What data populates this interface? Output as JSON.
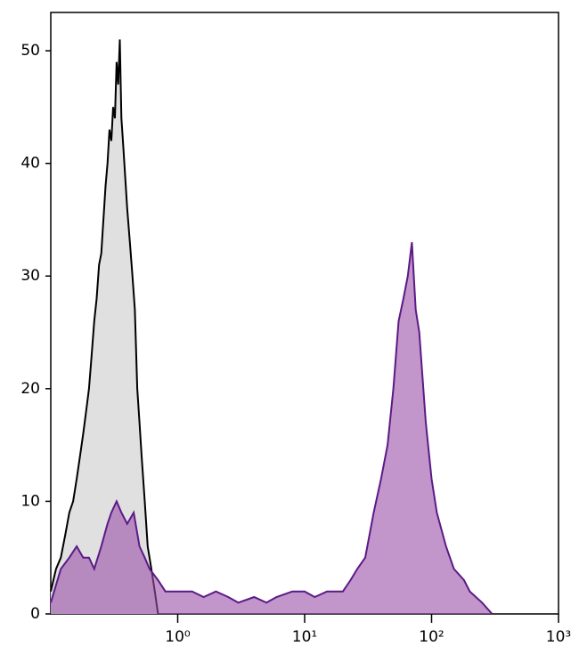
{
  "chart_data": {
    "type": "area",
    "log_x": true,
    "xlim": [
      0.1,
      1000
    ],
    "ylim": [
      0,
      53.4
    ],
    "xticks": [
      {
        "value": 1,
        "label": "10⁰"
      },
      {
        "value": 10,
        "label": "10¹"
      },
      {
        "value": 100,
        "label": "10²"
      },
      {
        "value": 1000,
        "label": "10³"
      }
    ],
    "yticks": [
      0,
      10,
      20,
      30,
      40,
      50
    ],
    "series": [
      {
        "color": "#000000",
        "fill": "#e0e0e0",
        "x": [
          0.1,
          0.11,
          0.12,
          0.13,
          0.14,
          0.15,
          0.16,
          0.17,
          0.18,
          0.19,
          0.2,
          0.21,
          0.22,
          0.23,
          0.24,
          0.25,
          0.26,
          0.27,
          0.28,
          0.29,
          0.3,
          0.31,
          0.32,
          0.33,
          0.34,
          0.35,
          0.36,
          0.37,
          0.38,
          0.39,
          0.4,
          0.42,
          0.44,
          0.46,
          0.48,
          0.5,
          0.52,
          0.55,
          0.58,
          0.62,
          0.66,
          0.7
        ],
        "values": [
          2,
          4,
          5,
          7,
          9,
          10,
          12,
          14,
          16,
          18,
          20,
          23,
          26,
          28,
          31,
          32,
          35,
          38,
          40,
          43,
          42,
          45,
          44,
          49,
          47,
          51,
          44,
          42,
          40,
          38,
          36,
          33,
          30,
          27,
          20,
          17,
          14,
          10,
          6,
          4,
          2,
          0
        ]
      },
      {
        "color": "#5b1a86",
        "fill": "#9a4fa8",
        "x": [
          0.1,
          0.12,
          0.14,
          0.16,
          0.18,
          0.2,
          0.22,
          0.25,
          0.28,
          0.3,
          0.33,
          0.36,
          0.4,
          0.45,
          0.5,
          0.55,
          0.6,
          0.7,
          0.8,
          1,
          1.3,
          1.6,
          2,
          2.5,
          3,
          4,
          5,
          6,
          8,
          10,
          12,
          15,
          18,
          20,
          23,
          26,
          30,
          35,
          40,
          45,
          50,
          55,
          60,
          65,
          70,
          75,
          80,
          90,
          100,
          110,
          130,
          150,
          180,
          200,
          250,
          300
        ],
        "values": [
          1,
          4,
          5,
          6,
          5,
          5,
          4,
          6,
          8,
          9,
          10,
          9,
          8,
          9,
          6,
          5,
          4,
          3,
          2,
          2,
          2,
          1.5,
          2,
          1.5,
          1,
          1.5,
          1,
          1.5,
          2,
          2,
          1.5,
          2,
          2,
          2,
          3,
          4,
          5,
          9,
          12,
          15,
          20,
          26,
          28,
          30,
          33,
          27,
          25,
          17,
          12,
          9,
          6,
          4,
          3,
          2,
          1,
          0
        ]
      }
    ]
  }
}
